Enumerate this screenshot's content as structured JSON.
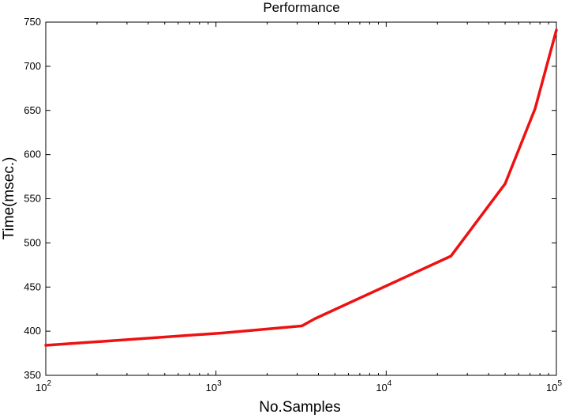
{
  "chart_data": {
    "type": "line",
    "title": "Performance",
    "xlabel": "No.Samples",
    "ylabel": "Time(msec.)",
    "x_scale": "log",
    "xlim": [
      100,
      100000
    ],
    "ylim": [
      350,
      750
    ],
    "grid": false,
    "x_ticks": [
      {
        "base": "10",
        "exp": "2",
        "value": 100
      },
      {
        "base": "10",
        "exp": "3",
        "value": 1000
      },
      {
        "base": "10",
        "exp": "4",
        "value": 10000
      },
      {
        "base": "10",
        "exp": "5",
        "value": 100000
      }
    ],
    "y_ticks": [
      "350",
      "400",
      "450",
      "500",
      "550",
      "600",
      "650",
      "700",
      "750"
    ],
    "series": [
      {
        "color": "#ee1111",
        "x": [
          100,
          1100,
          3200,
          3800,
          24000,
          50000,
          75000,
          100000
        ],
        "y": [
          384,
          398,
          406,
          414,
          485,
          567,
          652,
          741
        ]
      }
    ]
  }
}
